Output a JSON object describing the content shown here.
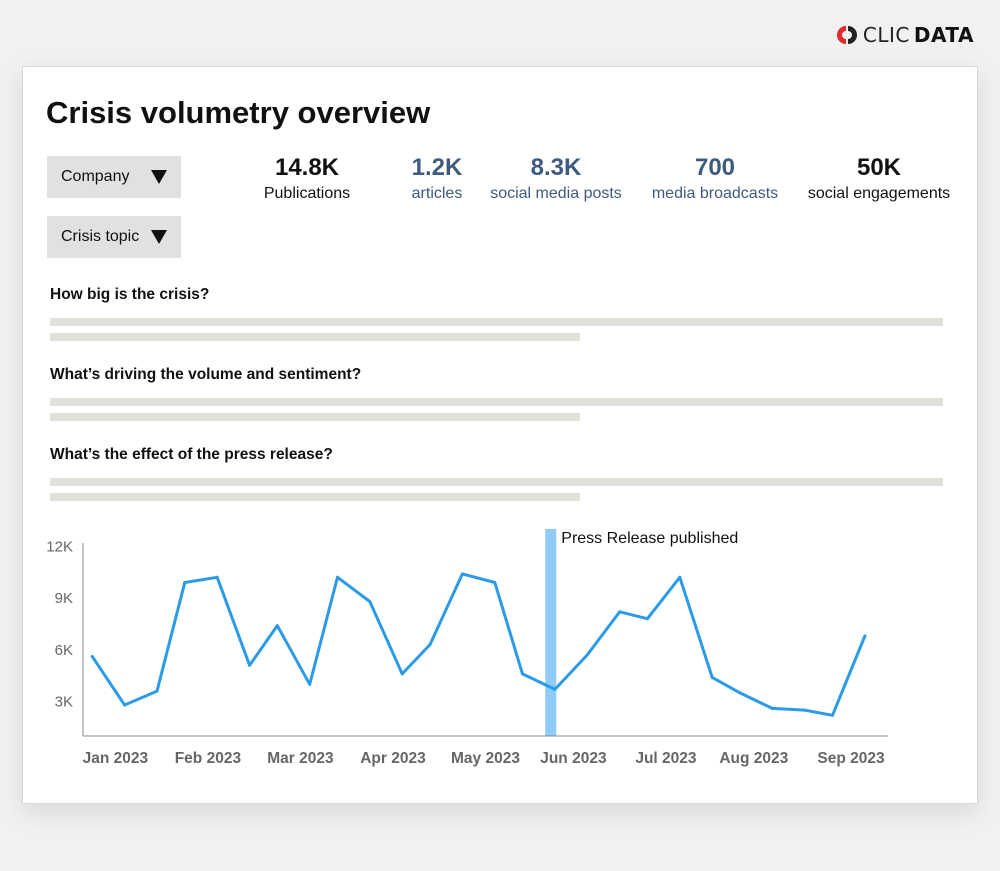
{
  "brand": {
    "clic": "CLIC",
    "data": "DATA"
  },
  "dashboard": {
    "title": "Crisis volumetry overview",
    "filters": [
      {
        "label": "Company"
      },
      {
        "label": "Crisis topic"
      }
    ],
    "kpis": [
      {
        "value": "14.8K",
        "label": "Publications",
        "style": "dark"
      },
      {
        "value": "1.2K",
        "label": "articles",
        "style": "blue"
      },
      {
        "value": "8.3K",
        "label": "social media posts",
        "style": "blue"
      },
      {
        "value": "700",
        "label": "media broadcasts",
        "style": "blue"
      },
      {
        "value": "50K",
        "label": "social engagements",
        "style": "dark"
      }
    ],
    "questions": [
      {
        "text": "How big is the crisis?"
      },
      {
        "text": "What’s driving the volume and sentiment?"
      },
      {
        "text": "What’s the effect of the press release?"
      }
    ]
  },
  "colors": {
    "line": "#2b9be8",
    "annotation_band": "#8ecbf6",
    "kpi_blue": "#3e5b7e"
  },
  "chart_data": {
    "type": "line",
    "title": "",
    "xlabel": "",
    "ylabel": "",
    "ylim": [
      1000,
      13000
    ],
    "yticks": [
      {
        "value": 3000,
        "label": "3K"
      },
      {
        "value": 6000,
        "label": "6K"
      },
      {
        "value": 9000,
        "label": "9K"
      },
      {
        "value": 12000,
        "label": "12K"
      }
    ],
    "xlim": [
      0,
      8.7
    ],
    "xticks": [
      {
        "value": 0.35,
        "label": "Jan 2023"
      },
      {
        "value": 1.35,
        "label": "Feb 2023"
      },
      {
        "value": 2.35,
        "label": "Mar 2023"
      },
      {
        "value": 3.35,
        "label": "Apr 2023"
      },
      {
        "value": 4.35,
        "label": "May 2023"
      },
      {
        "value": 5.3,
        "label": "Jun 2023"
      },
      {
        "value": 6.3,
        "label": "Jul 2023"
      },
      {
        "value": 7.25,
        "label": "Aug 2023"
      },
      {
        "value": 8.3,
        "label": "Sep 2023"
      }
    ],
    "series": [
      {
        "name": "Publications",
        "x": [
          0.1,
          0.45,
          0.8,
          1.1,
          1.45,
          1.8,
          2.1,
          2.45,
          2.75,
          3.1,
          3.45,
          3.75,
          4.1,
          4.45,
          4.75,
          5.1,
          5.45,
          5.8,
          6.1,
          6.45,
          6.8,
          7.1,
          7.45,
          7.8,
          8.1,
          8.45
        ],
        "y": [
          5600,
          2800,
          3600,
          9900,
          10200,
          5100,
          7400,
          4000,
          10200,
          8800,
          4600,
          6300,
          10400,
          9900,
          4600,
          3700,
          5700,
          8200,
          7800,
          10200,
          4400,
          3500,
          2600,
          2500,
          2200,
          6800
        ]
      }
    ],
    "annotations": [
      {
        "x": 5.05,
        "label": "Press Release published"
      }
    ]
  }
}
